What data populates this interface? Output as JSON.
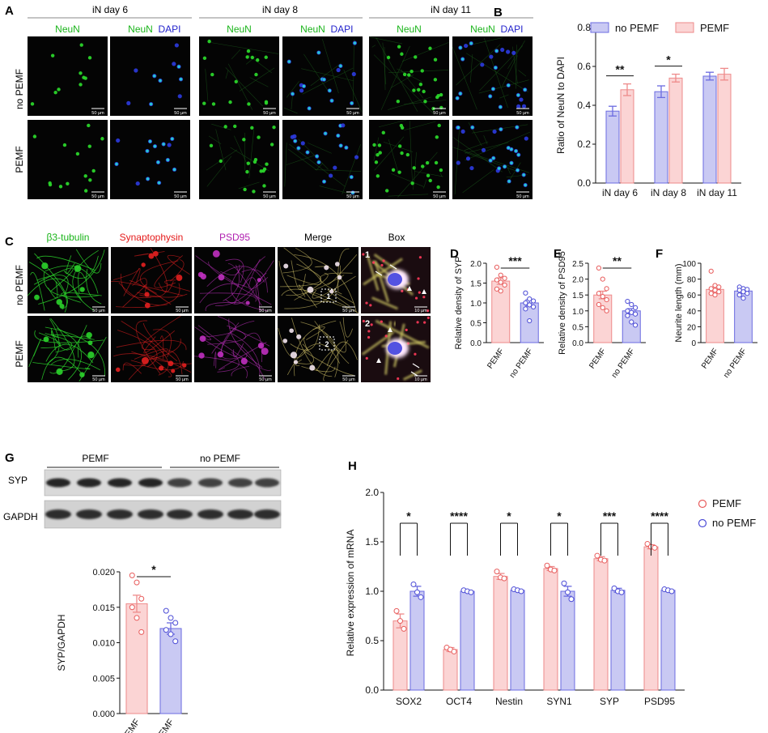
{
  "panel_letters": {
    "a": "A",
    "b": "B",
    "c": "C",
    "d": "D",
    "e": "E",
    "f": "F",
    "g": "G",
    "h": "H"
  },
  "colors": {
    "pemf_fill": "#fbd4d4",
    "pemf_edge": "#ee8a8a",
    "pemf_dot": "#e85c5c",
    "nopemf_fill": "#c9c9f3",
    "nopemf_edge": "#6b6be0",
    "nopemf_dot": "#4c4cd6",
    "neun_green": "#19b419",
    "dapi_blue": "#2222cc",
    "syp_red": "#e51a1a",
    "psd_purple": "#b020b0",
    "micro_bg": "#040404",
    "scale_text": "#ffffff"
  },
  "panel_a": {
    "days": [
      "iN day 6",
      "iN day 8",
      "iN day 11"
    ],
    "col_neun": "NeuN",
    "col_dapi": "DAPI",
    "rows": [
      "no PEMF",
      "PEMF"
    ],
    "scale": "50 µm"
  },
  "panel_c": {
    "headers": [
      "β3-tubulin",
      "Synaptophysin",
      "PSD95",
      "Merge",
      "Box"
    ],
    "rows": [
      "no PEMF",
      "PEMF"
    ],
    "scale": "50 µm",
    "scale_box": "10 µm",
    "box_labels": [
      "1",
      "2"
    ]
  },
  "panel_g": {
    "groups": [
      "PEMF",
      "no PEMF"
    ],
    "rows": [
      "SYP",
      "GAPDH"
    ]
  },
  "chart_data": [
    {
      "id": "B",
      "type": "bar",
      "categories": [
        "iN day 6",
        "iN day 8",
        "iN day 11"
      ],
      "series": [
        {
          "name": "no PEMF",
          "values": [
            0.37,
            0.47,
            0.55
          ],
          "errors": [
            0.025,
            0.03,
            0.02
          ]
        },
        {
          "name": "PEMF",
          "values": [
            0.48,
            0.54,
            0.56
          ],
          "errors": [
            0.03,
            0.02,
            0.03
          ]
        }
      ],
      "ylabel": "Ratio of NeuN to DAPI",
      "ylim": [
        0,
        0.8
      ],
      "yticks": [
        "0.0",
        "0.2",
        "0.4",
        "0.6",
        "0.8"
      ],
      "significance": [
        "**",
        "*",
        ""
      ],
      "legend_position": "top"
    },
    {
      "id": "D",
      "type": "bar",
      "categories": [
        "PEMF",
        "no PEMF"
      ],
      "values": [
        1.55,
        1.0
      ],
      "errors": [
        0.08,
        0.08
      ],
      "points": [
        [
          1.9,
          1.7,
          1.62,
          1.58,
          1.52,
          1.45,
          1.35,
          1.3
        ],
        [
          1.25,
          1.1,
          1.05,
          1.0,
          0.95,
          0.9,
          0.85,
          0.55
        ]
      ],
      "ylabel": "Relative density of SYP",
      "ylim": [
        0,
        2.0
      ],
      "yticks": [
        "0.0",
        "0.5",
        "1.0",
        "1.5",
        "2.0"
      ],
      "significance": "***"
    },
    {
      "id": "E",
      "type": "bar",
      "categories": [
        "PEMF",
        "no PEMF"
      ],
      "values": [
        1.5,
        1.0
      ],
      "errors": [
        0.12,
        0.07
      ],
      "points": [
        [
          2.35,
          2.0,
          1.7,
          1.55,
          1.45,
          1.35,
          1.2,
          1.1,
          1.0
        ],
        [
          1.3,
          1.2,
          1.1,
          1.0,
          0.95,
          0.9,
          0.85,
          0.65,
          0.55
        ]
      ],
      "ylabel": "Relative density of PSD95",
      "ylim": [
        0,
        2.5
      ],
      "yticks": [
        "0.0",
        "0.5",
        "1.0",
        "1.5",
        "2.0",
        "2.5"
      ],
      "significance": "**"
    },
    {
      "id": "F",
      "type": "bar",
      "categories": [
        "PEMF",
        "no PEMF"
      ],
      "values": [
        67,
        65
      ],
      "errors": [
        3,
        3
      ],
      "points": [
        [
          90,
          72,
          70,
          68,
          66,
          64,
          62,
          60
        ],
        [
          70,
          68,
          67,
          66,
          64,
          62,
          60,
          56
        ]
      ],
      "ylabel": "Neurite length (mm)",
      "ylim": [
        0,
        100
      ],
      "yticks": [
        "0",
        "20",
        "40",
        "60",
        "80",
        "100"
      ],
      "significance": ""
    },
    {
      "id": "G",
      "type": "bar",
      "categories": [
        "PEMF",
        "no PEMF"
      ],
      "values": [
        0.0155,
        0.012
      ],
      "errors": [
        0.0012,
        0.0008
      ],
      "points": [
        [
          0.0195,
          0.0185,
          0.0162,
          0.015,
          0.0135,
          0.0115
        ],
        [
          0.0145,
          0.0135,
          0.0128,
          0.0118,
          0.0112,
          0.0102
        ]
      ],
      "ylabel": "SYP/GAPDH",
      "ylim": [
        0,
        0.02
      ],
      "yticks": [
        "0.000",
        "0.005",
        "0.010",
        "0.015",
        "0.020"
      ],
      "significance": "*"
    },
    {
      "id": "H",
      "type": "bar",
      "categories": [
        "SOX2",
        "OCT4",
        "Nestin",
        "SYN1",
        "SYP",
        "PSD95"
      ],
      "series": [
        {
          "name": "PEMF",
          "values": [
            0.7,
            0.41,
            1.15,
            1.23,
            1.33,
            1.45
          ],
          "errors": [
            0.07,
            0.02,
            0.03,
            0.02,
            0.02,
            0.02
          ],
          "points": [
            [
              0.8,
              0.7,
              0.62
            ],
            [
              0.43,
              0.41,
              0.39
            ],
            [
              1.2,
              1.14,
              1.13
            ],
            [
              1.26,
              1.22,
              1.21
            ],
            [
              1.36,
              1.32,
              1.31
            ],
            [
              1.48,
              1.45,
              1.44
            ]
          ]
        },
        {
          "name": "no PEMF",
          "values": [
            1.0,
            1.0,
            1.01,
            1.0,
            1.01,
            1.01
          ],
          "errors": [
            0.05,
            0.01,
            0.01,
            0.05,
            0.02,
            0.01
          ],
          "points": [
            [
              1.07,
              0.99,
              0.94
            ],
            [
              1.01,
              1.0,
              0.99
            ],
            [
              1.02,
              1.01,
              1.0
            ],
            [
              1.08,
              0.99,
              0.92
            ],
            [
              1.03,
              1.0,
              0.99
            ],
            [
              1.02,
              1.01,
              1.0
            ]
          ]
        }
      ],
      "ylabel": "Relative expression of mRNA",
      "ylim": [
        0,
        2.0
      ],
      "yticks": [
        "0.0",
        "0.5",
        "1.0",
        "1.5",
        "2.0"
      ],
      "significance": [
        "*",
        "****",
        "*",
        "*",
        "***",
        "****"
      ],
      "legend_position": "top-right"
    }
  ]
}
